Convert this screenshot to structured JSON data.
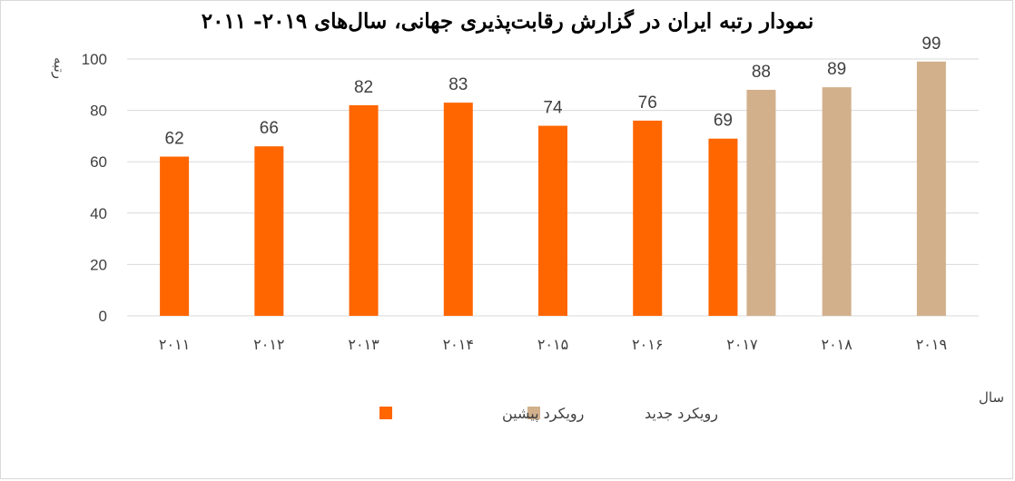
{
  "chart_data": {
    "type": "bar",
    "title": "نمودار رتبه ایران در گزارش رقابت‌پذیری جهانی، سال‌های ۲۰۱۹- ۲۰۱۱",
    "xlabel": "سال",
    "ylabel": "رتبه",
    "ylim": [
      0,
      100
    ],
    "yticks": [
      0,
      20,
      40,
      60,
      80,
      100
    ],
    "grid": true,
    "legend_position": "bottom",
    "categories": [
      "۲۰۱۱",
      "۲۰۱۲",
      "۲۰۱۳",
      "۲۰۱۴",
      "۲۰۱۵",
      "۲۰۱۶",
      "۲۰۱۷",
      "۲۰۱۸",
      "۲۰۱۹"
    ],
    "series": [
      {
        "name": "رویکرد پیشین",
        "color": "#ff6600",
        "values": [
          62,
          66,
          82,
          83,
          74,
          76,
          69,
          null,
          null
        ]
      },
      {
        "name": "رویکرد جدید",
        "color": "#d2b08c",
        "values": [
          null,
          null,
          null,
          null,
          null,
          null,
          88,
          89,
          99
        ]
      }
    ]
  }
}
